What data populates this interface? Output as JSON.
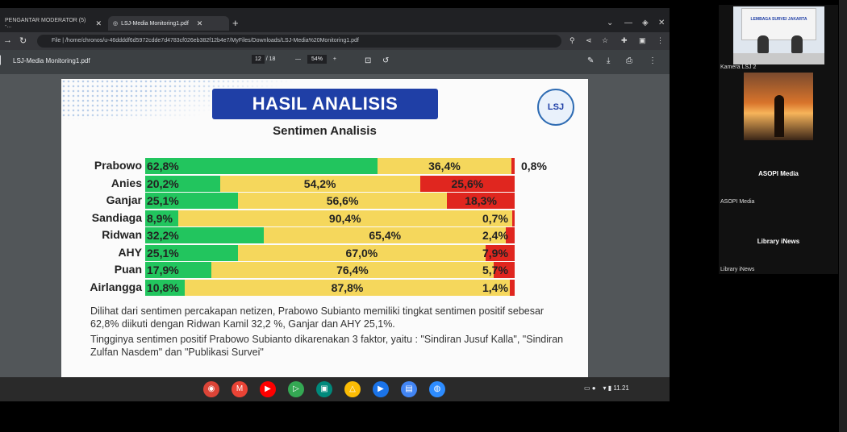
{
  "browser": {
    "tabs": [
      {
        "label": "PENGANTAR MODERATOR (5) -...",
        "active": false
      },
      {
        "label": "LSJ-Media Monitoring1.pdf",
        "active": true
      }
    ],
    "url": "File | /home/chronos/u-46ddddf6d5972cdde7d4783cf026eb382f12b4e7/MyFiles/Downloads/LSJ-Media%20Monitoring1.pdf"
  },
  "pdf_toolbar": {
    "title": "LSJ-Media Monitoring1.pdf",
    "page_current": "12",
    "page_total": "/ 18",
    "zoom": "54%"
  },
  "slide": {
    "title": "HASIL ANALISIS",
    "subtitle": "Sentimen Analisis",
    "logo_text": "LSJ",
    "description": [
      "Dilihat dari sentimen percakapan netizen, Prabowo Subianto memiliki tingkat sentimen positif sebesar 62,8% diikuti dengan Ridwan Kamil 32,2 %, Ganjar dan AHY 25,1%.",
      "Tingginya sentimen positif Prabowo Subianto dikarenakan 3 faktor, yaitu : \"Sindiran Jusuf Kalla\", \"Sindiran Zulfan Nasdem\" dan \"Publikasi Survei\""
    ]
  },
  "chart_data": {
    "type": "bar",
    "stacked": true,
    "orientation": "horizontal",
    "categories": [
      "Prabowo",
      "Anies",
      "Ganjar",
      "Sandiaga",
      "Ridwan",
      "AHY",
      "Puan",
      "Airlangga"
    ],
    "series": [
      {
        "color": "#22c55e",
        "values": [
          62.8,
          20.2,
          25.1,
          8.9,
          32.2,
          25.1,
          17.9,
          10.8
        ],
        "labels": [
          "62,8%",
          "20,2%",
          "25,1%",
          "8,9%",
          "32,2%",
          "25,1%",
          "17,9%",
          "10,8%"
        ]
      },
      {
        "color": "#f5d75c",
        "values": [
          36.4,
          54.2,
          56.6,
          90.4,
          65.4,
          67.0,
          76.4,
          87.8
        ],
        "labels": [
          "36,4%",
          "54,2%",
          "56,6%",
          "90,4%",
          "65,4%",
          "67,0%",
          "76,4%",
          "87,8%"
        ]
      },
      {
        "color": "#e0261f",
        "values": [
          0.8,
          25.6,
          18.3,
          0.7,
          2.4,
          7.9,
          5.7,
          1.4
        ],
        "labels": [
          "0,8%",
          "25,6%",
          "18,3%",
          "0,7%",
          "2,4%",
          "7,9%",
          "5,7%",
          "1,4%"
        ]
      }
    ],
    "xlim": [
      0,
      100
    ]
  },
  "shelf": {
    "apps": [
      "chrome-icon",
      "gmail-icon",
      "youtube-icon",
      "play-store-icon",
      "meet-icon",
      "drive-icon",
      "play-movies-icon",
      "files-icon",
      "zoom-icon"
    ],
    "time": "11.21"
  },
  "side_panel": {
    "camera_label": "Kamera LSJ 2",
    "camera_banner": "LEMBAGA SURVEI JAKARTA",
    "participants": [
      {
        "tile_name": "ASOPI Media",
        "label": "ASOPI Media"
      },
      {
        "tile_name": "Library iNews",
        "label": "Library iNews"
      }
    ]
  }
}
